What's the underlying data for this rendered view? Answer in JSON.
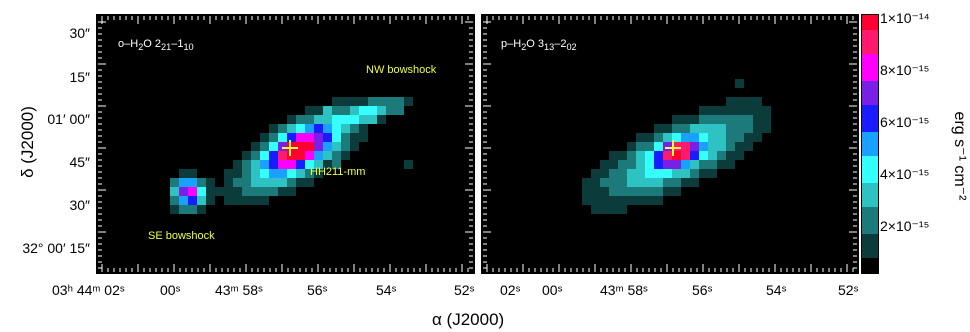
{
  "panels": [
    {
      "title_html": "o–H<sub>2</sub>O 2<sub>21</sub>–1<sub>10</sub>"
    },
    {
      "title_html": "p–H<sub>2</sub>O 3<sub>13</sub>–2<sub>02</sub>"
    }
  ],
  "annotations": {
    "nw_bowshock": "NW bowshock",
    "hh211": "HH211-mm",
    "se_bowshock": "SE bowshock"
  },
  "y_axis": {
    "title": "δ (J2000)",
    "ticks": [
      "30″",
      "15″",
      "01′ 00″",
      "45″",
      "30″",
      "32° 00′ 15″"
    ]
  },
  "x_axis": {
    "title": "α (J2000)",
    "ticks_left": [
      "03ʰ 44ᵐ 02ˢ",
      "00ˢ",
      "43ᵐ 58ˢ",
      "56ˢ",
      "54ˢ",
      "52ˢ"
    ],
    "ticks_right": [
      "02ˢ",
      "00ˢ",
      "43ᵐ 58ˢ",
      "56ˢ",
      "54ˢ",
      "52ˢ"
    ]
  },
  "colorbar": {
    "title": "erg s⁻¹ cm⁻²",
    "ticks": [
      "1×10⁻¹⁴",
      "8×10⁻¹⁵",
      "6×10⁻¹⁵",
      "4×10⁻¹⁵",
      "2×10⁻¹⁵"
    ],
    "max": 1e-14,
    "colors": [
      "#000000",
      "#0b3b3b",
      "#1c7a7a",
      "#2fc2c2",
      "#36ffff",
      "#1aa0ff",
      "#1b1bff",
      "#7a1fe6",
      "#ff00ff",
      "#ff1a6e",
      "#ff0033"
    ]
  }
}
